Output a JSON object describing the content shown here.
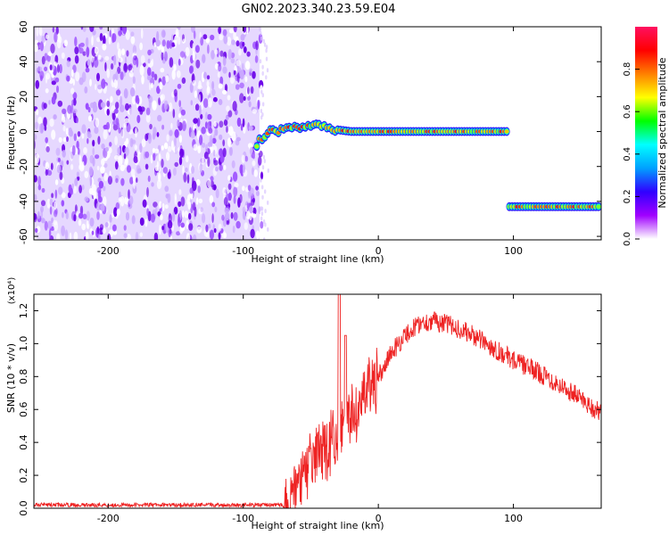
{
  "figure": {
    "title": "GN02.2023.340.23.59.E04"
  },
  "chart_data": [
    {
      "type": "heatmap",
      "xlabel": "Height of straight line (km)",
      "ylabel": "Frequency (Hz)",
      "xlim": [
        -255,
        165
      ],
      "ylim": [
        -62,
        60
      ],
      "xticks": [
        -200,
        -100,
        0,
        100
      ],
      "yticks": [
        60,
        40,
        20,
        0,
        -20,
        -40,
        -60
      ],
      "noise_region": {
        "x": [
          -255,
          -88
        ],
        "y": [
          -62,
          60
        ],
        "typical_amplitude": 0.15
      },
      "tracks": [
        {
          "x": [
            -90,
            -80,
            -70,
            -60,
            -50,
            -40,
            -30,
            -20,
            0,
            50,
            97
          ],
          "y": [
            -7,
            0,
            1,
            2,
            4,
            3,
            1,
            0,
            0,
            0,
            0
          ],
          "amplitude": 0.9
        },
        {
          "x": [
            97,
            165
          ],
          "y": [
            -43,
            -43
          ],
          "amplitude": 0.9
        }
      ],
      "colorbar": {
        "label": "Normalized spectral amplitude",
        "ticks": [
          0.0,
          0.2,
          0.4,
          0.6,
          0.8
        ],
        "range": [
          0,
          1
        ],
        "colors": [
          "#ffffff",
          "#a000ff",
          "#3000ff",
          "#00a0ff",
          "#00ffff",
          "#00ff00",
          "#ffff00",
          "#ff8000",
          "#ff0000",
          "#ff1060"
        ]
      }
    },
    {
      "type": "line",
      "xlabel": "Height of straight line (km)",
      "ylabel": "SNR (10 * v/v)",
      "y_multiplier": "(x10⁴)",
      "xlim": [
        -255,
        165
      ],
      "ylim": [
        0,
        1.3
      ],
      "xticks": [
        -200,
        -100,
        0,
        100
      ],
      "yticks": [
        0.0,
        0.2,
        0.4,
        0.6,
        0.8,
        1.0,
        1.2
      ],
      "color": "#ee2222",
      "series": [
        {
          "x": [
            -255,
            -200,
            -150,
            -100,
            -70,
            -65,
            -60,
            -55,
            -50,
            -45,
            -40,
            -35,
            -30,
            -25,
            -20,
            -15,
            -10,
            -5,
            0,
            10,
            20,
            30,
            40,
            50,
            60,
            70,
            80,
            90,
            100,
            110,
            120,
            130,
            140,
            150,
            160,
            165
          ],
          "y": [
            0.02,
            0.02,
            0.02,
            0.02,
            0.02,
            0.05,
            0.12,
            0.2,
            0.28,
            0.33,
            0.36,
            0.4,
            0.44,
            0.5,
            0.56,
            0.62,
            0.68,
            0.73,
            0.8,
            0.95,
            1.05,
            1.12,
            1.14,
            1.12,
            1.09,
            1.05,
            1.0,
            0.95,
            0.9,
            0.86,
            0.82,
            0.77,
            0.72,
            0.67,
            0.6,
            0.58
          ]
        }
      ]
    }
  ]
}
